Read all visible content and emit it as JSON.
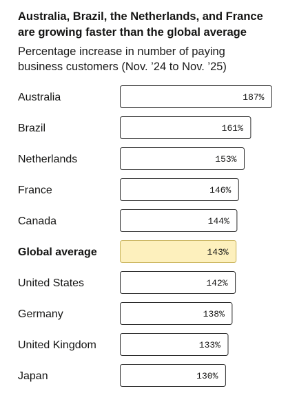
{
  "header": {
    "title": "Australia, Brazil, the Netherlands, and France are growing faster than the global average",
    "subtitle": "Percentage increase in number of paying business customers (Nov. ’24 to Nov. ’25)"
  },
  "chart_data": {
    "type": "bar",
    "orientation": "horizontal",
    "title": "Australia, Brazil, the Netherlands, and France are growing faster than the global average",
    "subtitle": "Percentage increase in number of paying business customers (Nov. ’24 to Nov. ’25)",
    "categories": [
      "Australia",
      "Brazil",
      "Netherlands",
      "France",
      "Canada",
      "Global average",
      "United States",
      "Germany",
      "United Kingdom",
      "Japan"
    ],
    "values": [
      187,
      161,
      153,
      146,
      144,
      143,
      142,
      138,
      133,
      130
    ],
    "value_labels": [
      "187%",
      "161%",
      "153%",
      "146%",
      "144%",
      "143%",
      "142%",
      "138%",
      "133%",
      "130%"
    ],
    "highlight_category": "Global average",
    "colors": {
      "bar_fill": "#ffffff",
      "bar_stroke": "#2b2b2b",
      "highlight_fill": "#fdf0bd",
      "highlight_stroke": "#c9b45c",
      "text": "#141413"
    },
    "xlim": [
      0,
      187
    ],
    "grid": false,
    "legend": "none"
  }
}
